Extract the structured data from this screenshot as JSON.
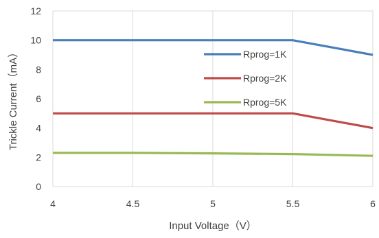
{
  "chart_data": {
    "type": "line",
    "xlabel": "Input Voltage（V）",
    "ylabel": "Trickle Current（mA）",
    "xlim": [
      4,
      6
    ],
    "ylim": [
      0,
      12
    ],
    "xticks": [
      4,
      4.5,
      5,
      5.5,
      6
    ],
    "xtick_labels": [
      "4",
      "4.5",
      "5",
      "5.5",
      "6"
    ],
    "yticks": [
      0,
      2,
      4,
      6,
      8,
      10,
      12
    ],
    "ytick_labels": [
      "0",
      "2",
      "4",
      "6",
      "8",
      "10",
      "12"
    ],
    "grid": "vertical",
    "legend_position": "inside-right",
    "series": [
      {
        "name": "Rprog=1K",
        "color": "#4a7ebb",
        "x": [
          4,
          4.5,
          5,
          5.5,
          6
        ],
        "y": [
          10,
          10,
          10,
          10,
          9
        ]
      },
      {
        "name": "Rprog=2K",
        "color": "#be4b48",
        "x": [
          4,
          4.5,
          5,
          5.5,
          6
        ],
        "y": [
          5,
          5,
          5,
          5,
          4
        ]
      },
      {
        "name": "Rprog=5K",
        "color": "#98b954",
        "x": [
          4,
          4.5,
          5,
          5.5,
          6
        ],
        "y": [
          2.3,
          2.3,
          2.27,
          2.22,
          2.1
        ]
      }
    ]
  }
}
